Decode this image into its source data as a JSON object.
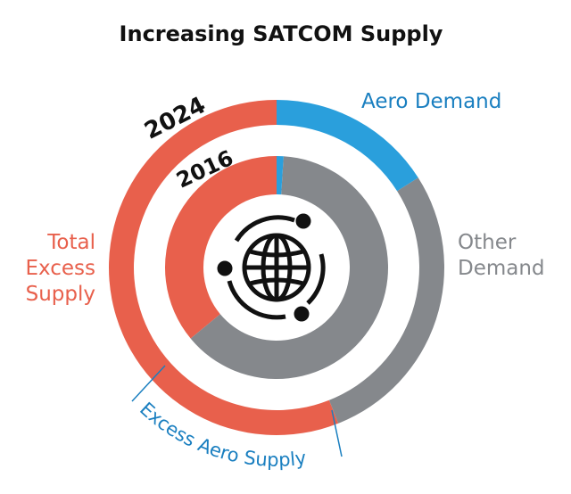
{
  "chart_data": {
    "type": "donut",
    "title": "Increasing SATCOM Supply",
    "categories": [
      "Aero Demand",
      "Other Demand",
      "Total Excess Supply"
    ],
    "colors": [
      "#2a9fdc",
      "#85888c",
      "#e8604c"
    ],
    "series": [
      {
        "name": "2024",
        "values": [
          16,
          28,
          56
        ]
      },
      {
        "name": "2016",
        "values": [
          1,
          63,
          36
        ]
      }
    ],
    "annotation": "Excess Aero Supply"
  }
}
